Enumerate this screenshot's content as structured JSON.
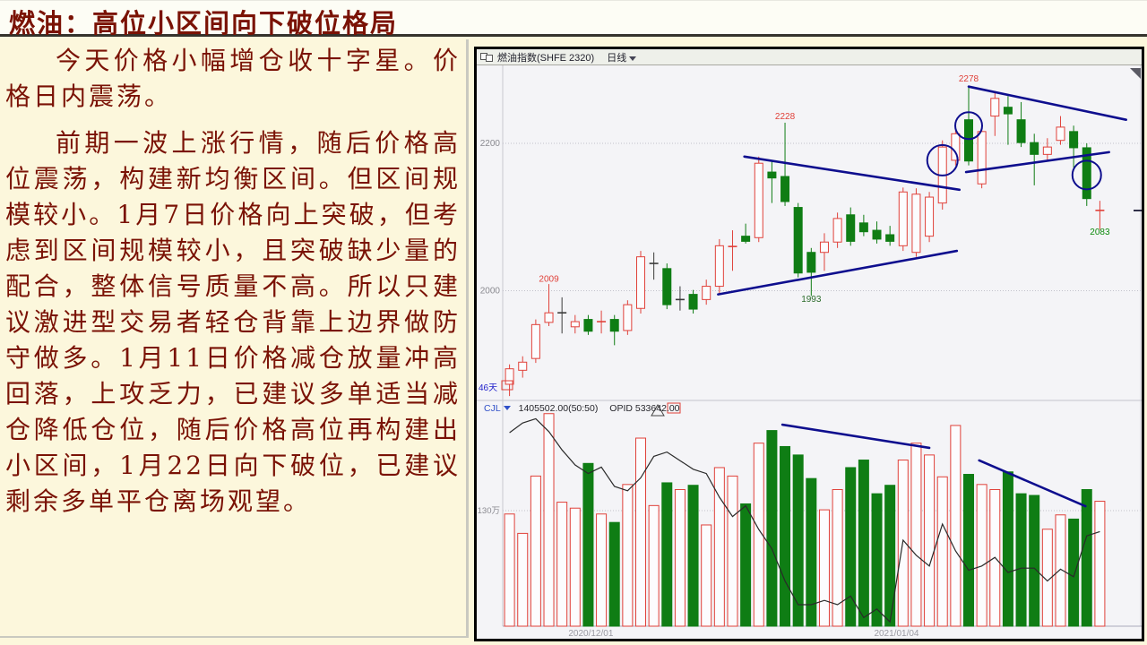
{
  "page": {
    "title": "燃油：高位小区间向下破位格局"
  },
  "article": {
    "paragraphs": [
      "今天价格小幅增仓收十字星。价格日内震荡。",
      "前期一波上涨行情，随后价格高位震荡，构建新均衡区间。但区间规模较小。1月7日价格向上突破，但考虑到区间规模较小，且突破缺少量的配合，整体信号质量不高。所以只建议激进型交易者轻仓背靠上边界做防守做多。1月11日价格减仓放量冲高回落，上攻乏力，已建议多单适当减仓降低仓位，随后价格高位再构建出小区间，1月22日向下破位，已建议剩余多单平仓离场观望。"
    ]
  },
  "chart_window": {
    "instrument_title": "燃油指数(SHFE 2320)",
    "period": "日线",
    "days_span_label": "46天",
    "indicator_row": {
      "label": "CJL",
      "value": "1405502.00(50:50)",
      "opid_label": "OPID",
      "opid_value": "533642.00"
    }
  },
  "chart_data": {
    "type": "candlestick+volume",
    "title": "燃油指数(SHFE 2320) 日线",
    "legend_position": "none",
    "grid": "dotted-horizontal",
    "ylim_price": [
      1850,
      2300
    ],
    "ylim_volume": [
      0,
      2600000
    ],
    "y_axis_ticks": [
      2200,
      2000
    ],
    "volume_axis_tick_value": 1300000,
    "volume_axis_tick_label": "130万",
    "x_date_labels": [
      {
        "label": "2020/12/01",
        "candle": 7.2
      },
      {
        "label": "2021/01/04",
        "candle": 30.5
      }
    ],
    "candles_format": "[open, high, low, close, kind r=red-hollow-up g=green-down b=black-doji]",
    "candles": [
      [
        1873,
        1900,
        1857,
        1894,
        "r"
      ],
      [
        1892,
        1911,
        1882,
        1903,
        "r"
      ],
      [
        1908,
        1961,
        1902,
        1954,
        "r"
      ],
      [
        1957,
        2009,
        1952,
        1970,
        "r"
      ],
      [
        1970,
        1991,
        1942,
        1970,
        "b"
      ],
      [
        1951,
        1967,
        1942,
        1958,
        "r"
      ],
      [
        1961,
        1967,
        1940,
        1945,
        "g"
      ],
      [
        1958,
        1973,
        1942,
        1958,
        "r"
      ],
      [
        1961,
        1967,
        1926,
        1945,
        "g"
      ],
      [
        1946,
        1987,
        1940,
        1981,
        "r"
      ],
      [
        1976,
        2054,
        1969,
        2046,
        "r"
      ],
      [
        2037,
        2052,
        2015,
        2037,
        "b"
      ],
      [
        2030,
        2037,
        1975,
        1981,
        "g"
      ],
      [
        1988,
        2006,
        1973,
        1988,
        "b"
      ],
      [
        1995,
        2001,
        1969,
        1975,
        "g"
      ],
      [
        1988,
        2015,
        1981,
        2006,
        "r"
      ],
      [
        2006,
        2070,
        1997,
        2061,
        "r"
      ],
      [
        2060,
        2082,
        2027,
        2060,
        "r"
      ],
      [
        2074,
        2091,
        2064,
        2067,
        "g"
      ],
      [
        2072,
        2182,
        2066,
        2173,
        "r"
      ],
      [
        2161,
        2176,
        2119,
        2153,
        "g"
      ],
      [
        2155,
        2228,
        2115,
        2121,
        "g"
      ],
      [
        2113,
        2119,
        2018,
        2024,
        "g"
      ],
      [
        2052,
        2058,
        1993,
        2025,
        "g"
      ],
      [
        2052,
        2078,
        2027,
        2066,
        "r"
      ],
      [
        2066,
        2106,
        2058,
        2098,
        "r"
      ],
      [
        2103,
        2113,
        2061,
        2067,
        "g"
      ],
      [
        2092,
        2103,
        2074,
        2080,
        "g"
      ],
      [
        2082,
        2094,
        2064,
        2070,
        "g"
      ],
      [
        2076,
        2088,
        2061,
        2067,
        "g"
      ],
      [
        2061,
        2140,
        2054,
        2134,
        "r"
      ],
      [
        2052,
        2139,
        2046,
        2131,
        "r"
      ],
      [
        2074,
        2134,
        2066,
        2127,
        "r"
      ],
      [
        2119,
        2204,
        2110,
        2195,
        "r"
      ],
      [
        2177,
        2222,
        2170,
        2213,
        "r"
      ],
      [
        2232,
        2278,
        2170,
        2176,
        "g"
      ],
      [
        2145,
        2222,
        2139,
        2216,
        "r"
      ],
      [
        2237,
        2271,
        2210,
        2261,
        "r"
      ],
      [
        2249,
        2264,
        2198,
        2240,
        "g"
      ],
      [
        2232,
        2256,
        2195,
        2201,
        "g"
      ],
      [
        2201,
        2213,
        2143,
        2185,
        "g"
      ],
      [
        2185,
        2207,
        2176,
        2195,
        "r"
      ],
      [
        2204,
        2237,
        2198,
        2222,
        "r"
      ],
      [
        2216,
        2224,
        2167,
        2194,
        "g"
      ],
      [
        2194,
        2200,
        2115,
        2125,
        "g"
      ],
      [
        2109,
        2122,
        2083,
        2109,
        "r"
      ]
    ],
    "volumes": [
      1262000,
      1044000,
      1689000,
      2391000,
      1395000,
      1328000,
      1831000,
      1262000,
      1167000,
      1594000,
      2116000,
      1357000,
      1613000,
      1537000,
      1585000,
      1139000,
      1784000,
      1689000,
      1376000,
      2059000,
      2201000,
      2021000,
      1926000,
      1661000,
      1309000,
      1537000,
      1784000,
      1869000,
      1490000,
      1585000,
      1869000,
      2059000,
      1926000,
      1680000,
      2258000,
      1708000,
      1594000,
      1537000,
      1736000,
      1490000,
      1471000,
      1091000,
      1252000,
      1205000,
      1537000,
      1405502
    ],
    "open_interest_relative": [
      0.9,
      0.945,
      0.965,
      0.905,
      0.82,
      0.75,
      0.71,
      0.74,
      0.65,
      0.63,
      0.69,
      0.79,
      0.81,
      0.77,
      0.73,
      0.71,
      0.6,
      0.51,
      0.56,
      0.45,
      0.36,
      0.21,
      0.1,
      0.1,
      0.12,
      0.1,
      0.14,
      0.04,
      0.08,
      0.02,
      0.4,
      0.33,
      0.28,
      0.475,
      0.35,
      0.26,
      0.28,
      0.32,
      0.25,
      0.27,
      0.27,
      0.21,
      0.265,
      0.23,
      0.42,
      0.44
    ],
    "annotations": [
      {
        "text": "2009",
        "candle": 4,
        "price": 2012,
        "color": "#e0413a"
      },
      {
        "text": "2228",
        "candle": 22,
        "price": 2233,
        "color": "#e0413a"
      },
      {
        "text": "2278",
        "candle": 36,
        "price": 2284,
        "color": "#e0413a"
      },
      {
        "text": "1993",
        "candle": 24,
        "price": 1985,
        "color": "#2a6b2a"
      },
      {
        "text": "2083",
        "candle": 46,
        "price": 2076,
        "color": "#0c8a0c"
      }
    ],
    "circles": [
      {
        "candle": 34,
        "price": 2177,
        "r": 17
      },
      {
        "candle": 36,
        "price": 2224,
        "r": 15
      },
      {
        "candle": 45,
        "price": 2157,
        "r": 16
      }
    ],
    "trendlines_price": [
      {
        "c1": 18.9,
        "p1": 2182,
        "c2": 35.3,
        "p2": 2137
      },
      {
        "c1": 16.9,
        "p1": 1995,
        "c2": 35.1,
        "p2": 2054
      },
      {
        "c1": 36.0,
        "p1": 2277,
        "c2": 48.0,
        "p2": 2232
      },
      {
        "c1": 35.8,
        "p1": 2161,
        "c2": 46.7,
        "p2": 2188
      }
    ],
    "trendlines_volume": [
      {
        "c1": 21.8,
        "v1": 2267000,
        "c2": 33.0,
        "v2": 2006000
      },
      {
        "c1": 36.8,
        "v1": 1865000,
        "c2": 44.9,
        "v2": 1350000
      }
    ],
    "colors": {
      "up": "#e0413a",
      "down": "#0f7d14",
      "doji": "#3a3a3a",
      "drawing": "#0e0e8e",
      "open_interest": "#2a2a2a",
      "axis_text": "#8a8a90",
      "grid": "#c2c2ca"
    }
  }
}
